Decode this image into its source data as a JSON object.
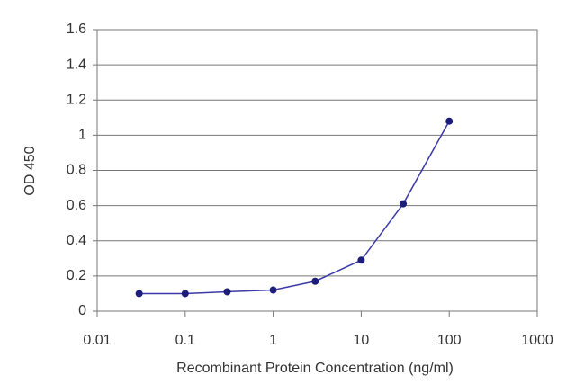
{
  "chart_data": {
    "type": "line",
    "x_label": "Recombinant Protein Concentration (ng/ml)",
    "y_label": "OD 450",
    "x": [
      0.03,
      0.1,
      0.3,
      1,
      3,
      10,
      30,
      100
    ],
    "values": [
      0.1,
      0.1,
      0.11,
      0.12,
      0.17,
      0.29,
      0.61,
      1.08
    ],
    "color": "#3a3aa8",
    "marker_color": "#1c1c7a",
    "xscale": "log",
    "xlim": [
      0.01,
      1000
    ],
    "xticks": [
      0.01,
      0.1,
      1,
      10,
      100,
      1000
    ],
    "ylim": [
      0,
      1.6
    ],
    "yticks": [
      0,
      0.2,
      0.4,
      0.6,
      0.8,
      1,
      1.2,
      1.4,
      1.6
    ],
    "grid": true
  }
}
